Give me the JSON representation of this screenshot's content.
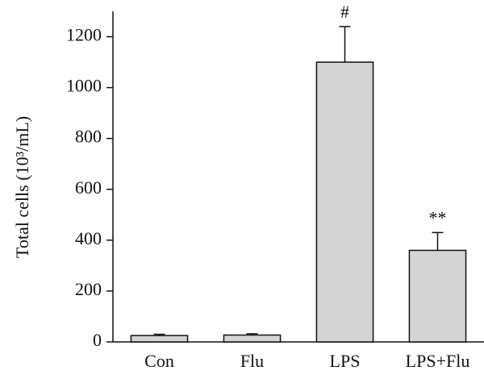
{
  "chart_data": {
    "type": "bar",
    "y_label": "Total cells (10³/mL)",
    "categories": [
      "Con",
      "Flu",
      "LPS",
      "LPS+Flu"
    ],
    "values": [
      25,
      27,
      1100,
      360
    ],
    "errors": [
      5,
      5,
      140,
      70
    ],
    "annotations": [
      null,
      null,
      "#",
      "**"
    ],
    "color": "#d4d4d4",
    "ylim": [
      0,
      1300
    ],
    "yticks": [
      0,
      200,
      400,
      600,
      800,
      1000,
      1200
    ],
    "grid": false
  }
}
